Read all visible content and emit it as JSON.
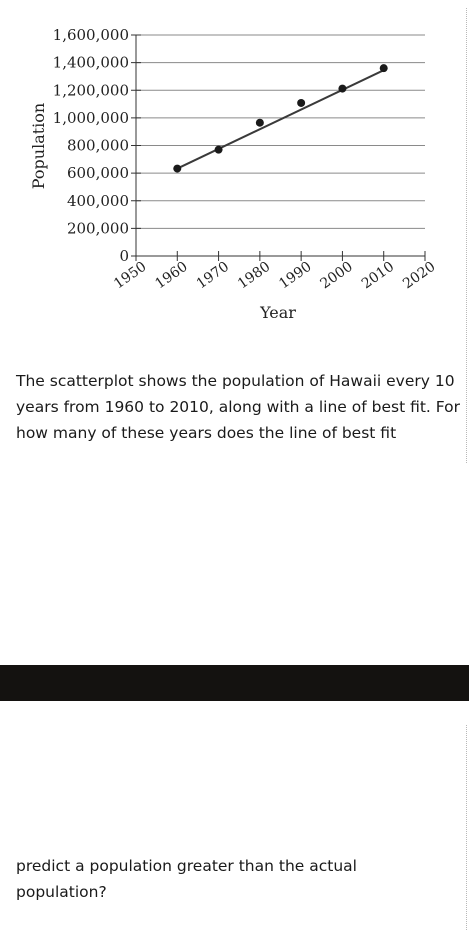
{
  "chart_data": {
    "type": "scatter",
    "title": "",
    "xlabel": "Year",
    "ylabel": "Population",
    "x_ticks": [
      "1950",
      "1960",
      "1970",
      "1980",
      "1990",
      "2000",
      "2010",
      "2020"
    ],
    "y_ticks": [
      "0",
      "200,000",
      "400,000",
      "600,000",
      "800,000",
      "1,000,000",
      "1,200,000",
      "1,400,000",
      "1,600,000"
    ],
    "xlim": [
      1950,
      2020
    ],
    "ylim": [
      0,
      1600000
    ],
    "grid": "horizontal",
    "points": [
      {
        "x": 1960,
        "y": 633000
      },
      {
        "x": 1970,
        "y": 770000
      },
      {
        "x": 1980,
        "y": 965000
      },
      {
        "x": 1990,
        "y": 1108000
      },
      {
        "x": 2000,
        "y": 1212000
      },
      {
        "x": 2010,
        "y": 1360000
      }
    ],
    "best_fit_line": {
      "x": [
        1960,
        2010
      ],
      "y": [
        633000,
        1345000
      ]
    },
    "colors": {
      "points": "#1a1a1a",
      "line": "#3a3a3a",
      "grid": "#8a8a8a"
    }
  },
  "question": {
    "part1": "The scatterplot shows the population of Hawaii every 10 years from 1960 to 2010, along with a line of best fit. For how many of these years does the line of best fit",
    "part2": "predict a population greater than the actual population?"
  }
}
